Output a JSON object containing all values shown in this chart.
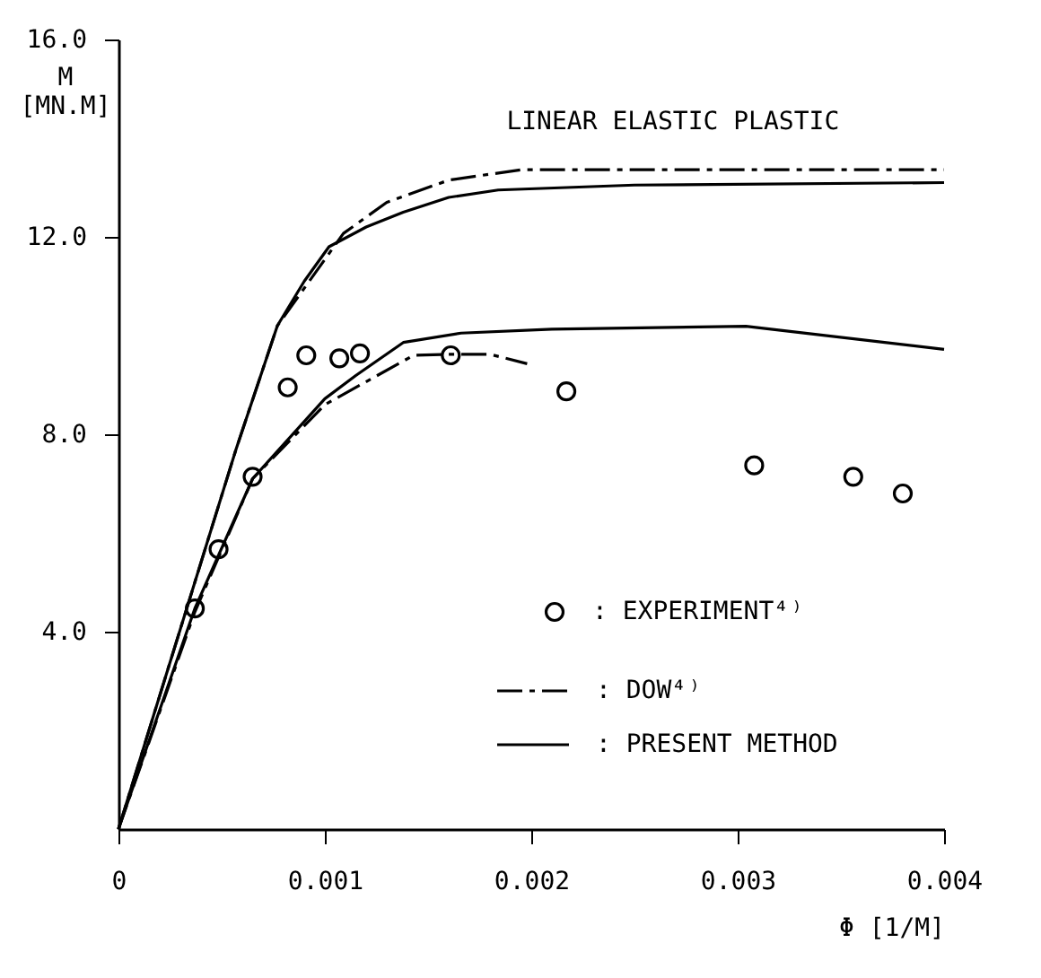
{
  "chart_data": {
    "type": "line",
    "xlabel": "Φ [1/M]",
    "ylabel": "M\n[MN.M]",
    "xlim": [
      0,
      0.004
    ],
    "ylim": [
      0,
      16
    ],
    "xticks": [
      {
        "value": 0,
        "label": "0"
      },
      0.001,
      0.002,
      0.003,
      0.004
    ],
    "yticks": [
      {
        "value": 4,
        "label": "4.0"
      },
      {
        "value": 8,
        "label": "8.0"
      },
      {
        "value": 12,
        "label": "12.0"
      },
      {
        "value": 16,
        "label": "16.0"
      }
    ],
    "grid": false,
    "legend": "bottom right",
    "annotations": [
      "LINEAR ELASTIC PLASTIC"
    ],
    "series": [
      {
        "name": ": EXPERIMENT⁴⁾",
        "type": "scatter",
        "marker": "circle",
        "color": "#000000",
        "x": [
          0.00037,
          0.000485,
          0.00065,
          0.00082,
          0.00091,
          0.00107,
          0.00117,
          0.00161,
          0.00217,
          0.00308,
          0.00356,
          0.0038
        ],
        "values": [
          4.47,
          5.67,
          7.14,
          8.95,
          9.6,
          9.54,
          9.64,
          9.6,
          8.87,
          7.37,
          7.14,
          6.8
        ]
      },
      {
        "name": ": DOW⁴⁾",
        "type": "line",
        "line_style": "dashed",
        "color": "#000000",
        "x": [
          0,
          0.00017,
          0.00057,
          0.00077,
          0.00109,
          0.0013,
          0.0016,
          0.00195,
          0.004
        ],
        "values": [
          0,
          2.3,
          7.7,
          10.2,
          12.07,
          12.7,
          13.15,
          13.36,
          13.36
        ]
      },
      {
        "type": "line",
        "line_style": "dashed",
        "color": "#000000",
        "x": [
          0,
          0.00037,
          0.00065,
          0.001,
          0.00143,
          0.0016,
          0.0018,
          0.00198
        ],
        "values": [
          0,
          4.4,
          7.1,
          8.6,
          9.6,
          9.62,
          9.62,
          9.43
        ]
      },
      {
        "name": ": PRESENT METHOD",
        "type": "line",
        "line_style": "solid",
        "color": "#000000",
        "x": [
          0,
          0.00037,
          0.00065,
          0.001,
          0.00115,
          0.00138,
          0.00166,
          0.0021,
          0.00304,
          0.004
        ],
        "values": [
          0,
          4.47,
          7.1,
          8.72,
          9.19,
          9.86,
          10.05,
          10.13,
          10.19,
          9.72
        ]
      },
      {
        "type": "line",
        "line_style": "solid",
        "color": "#000000",
        "x": [
          0,
          0.00017,
          0.00057,
          0.00077,
          0.0009,
          0.00102,
          0.0012,
          0.00138,
          0.0016,
          0.00184,
          0.0025,
          0.004
        ],
        "values": [
          0,
          2.3,
          7.7,
          10.2,
          11.1,
          11.8,
          12.2,
          12.5,
          12.8,
          12.95,
          13.05,
          13.1
        ]
      }
    ]
  }
}
